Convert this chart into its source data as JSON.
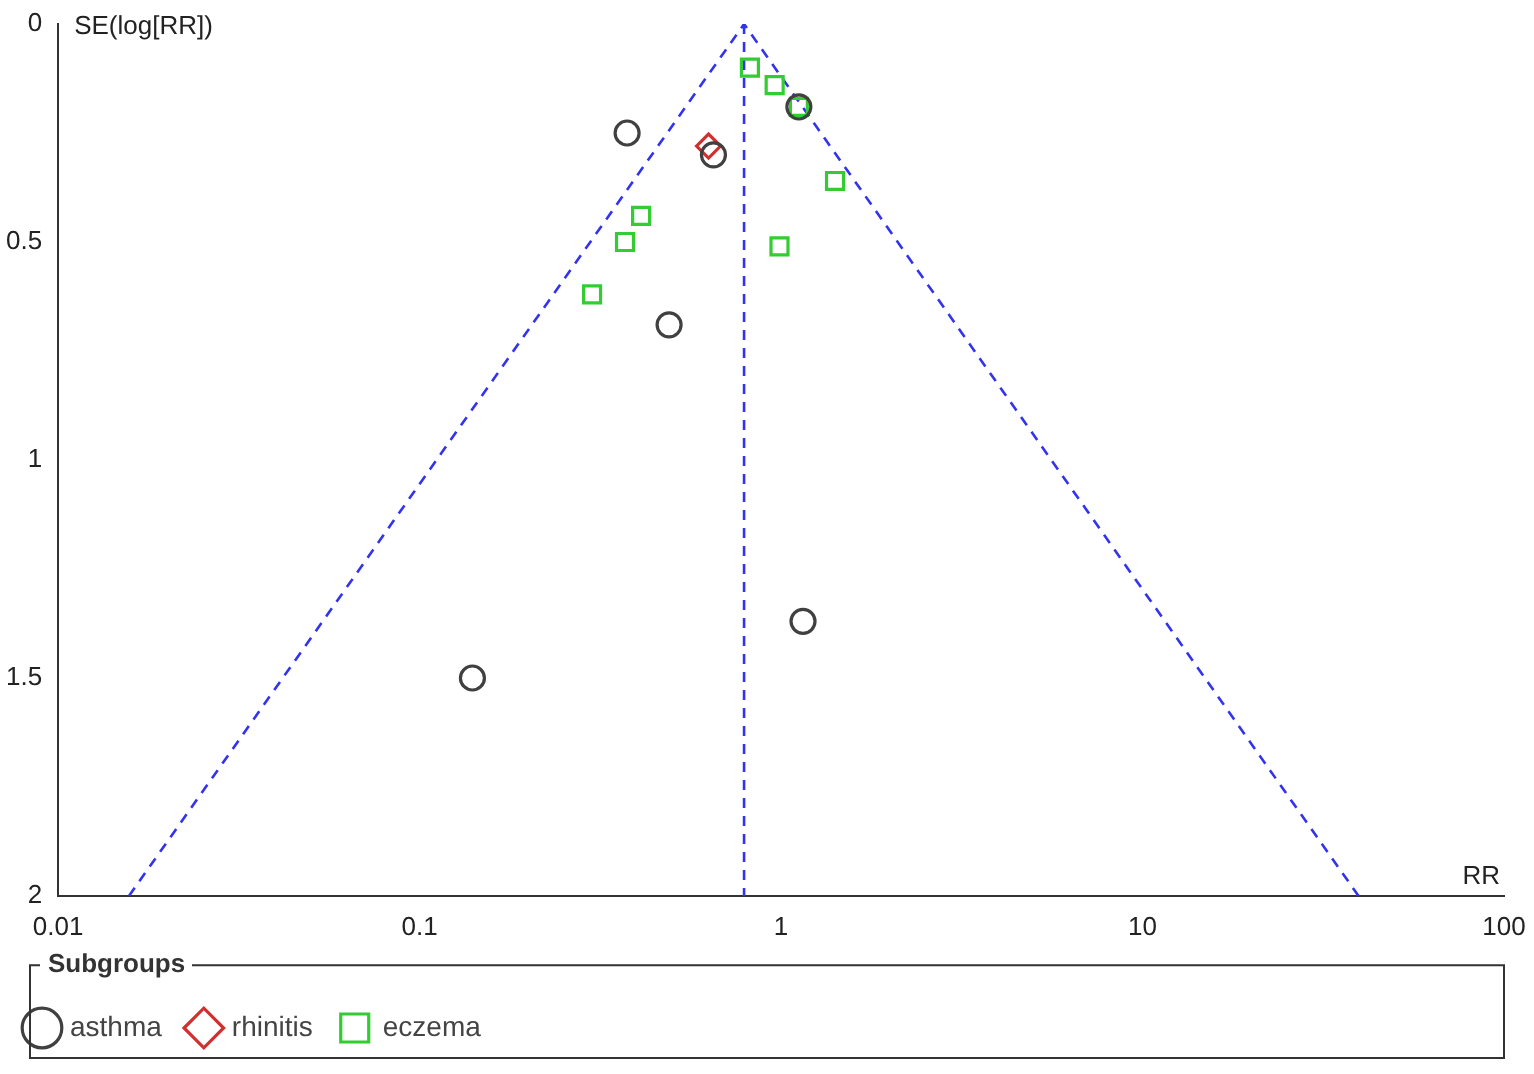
{
  "chart_data": {
    "type": "scatter",
    "xlabel": "RR",
    "ylabel": "SE(log[RR])",
    "legend_title": "Subgroups",
    "log": "x",
    "grid": false,
    "legend": "bottom",
    "xlim": [
      0.01,
      100
    ],
    "xticks": [
      0.01,
      0.1,
      1,
      10,
      100
    ],
    "ylim": [
      2,
      0
    ],
    "yticks": [
      0,
      0.5,
      1,
      1.5,
      2
    ],
    "ref_lines": [
      {
        "axis": "x",
        "value": 0.79,
        "color": "#3333ee",
        "line_style": "dashed"
      }
    ],
    "series": [
      {
        "name": "asthma",
        "color": "#404040",
        "marker": "circle",
        "x": [
          0.375,
          0.65,
          1.12,
          0.49,
          1.15,
          0.14
        ],
        "values": [
          0.25,
          0.3,
          0.19,
          0.69,
          1.37,
          1.5
        ]
      },
      {
        "name": "rhinitis",
        "color": "#d03030",
        "marker": "diamond",
        "x": [
          0.63
        ],
        "values": [
          0.28
        ]
      },
      {
        "name": "eczema",
        "color": "#33cc33",
        "marker": "square",
        "x": [
          0.82,
          0.96,
          1.12,
          1.41,
          0.41,
          0.37,
          0.99,
          0.3
        ],
        "values": [
          0.1,
          0.14,
          0.19,
          0.36,
          0.44,
          0.5,
          0.51,
          0.62
        ]
      },
      {
        "type": "line",
        "color": "#3333ee",
        "line_style": "dashed",
        "marker": "none",
        "x": [
          0.0157,
          0.79,
          39.6
        ],
        "values": [
          2,
          0,
          2
        ]
      }
    ]
  }
}
